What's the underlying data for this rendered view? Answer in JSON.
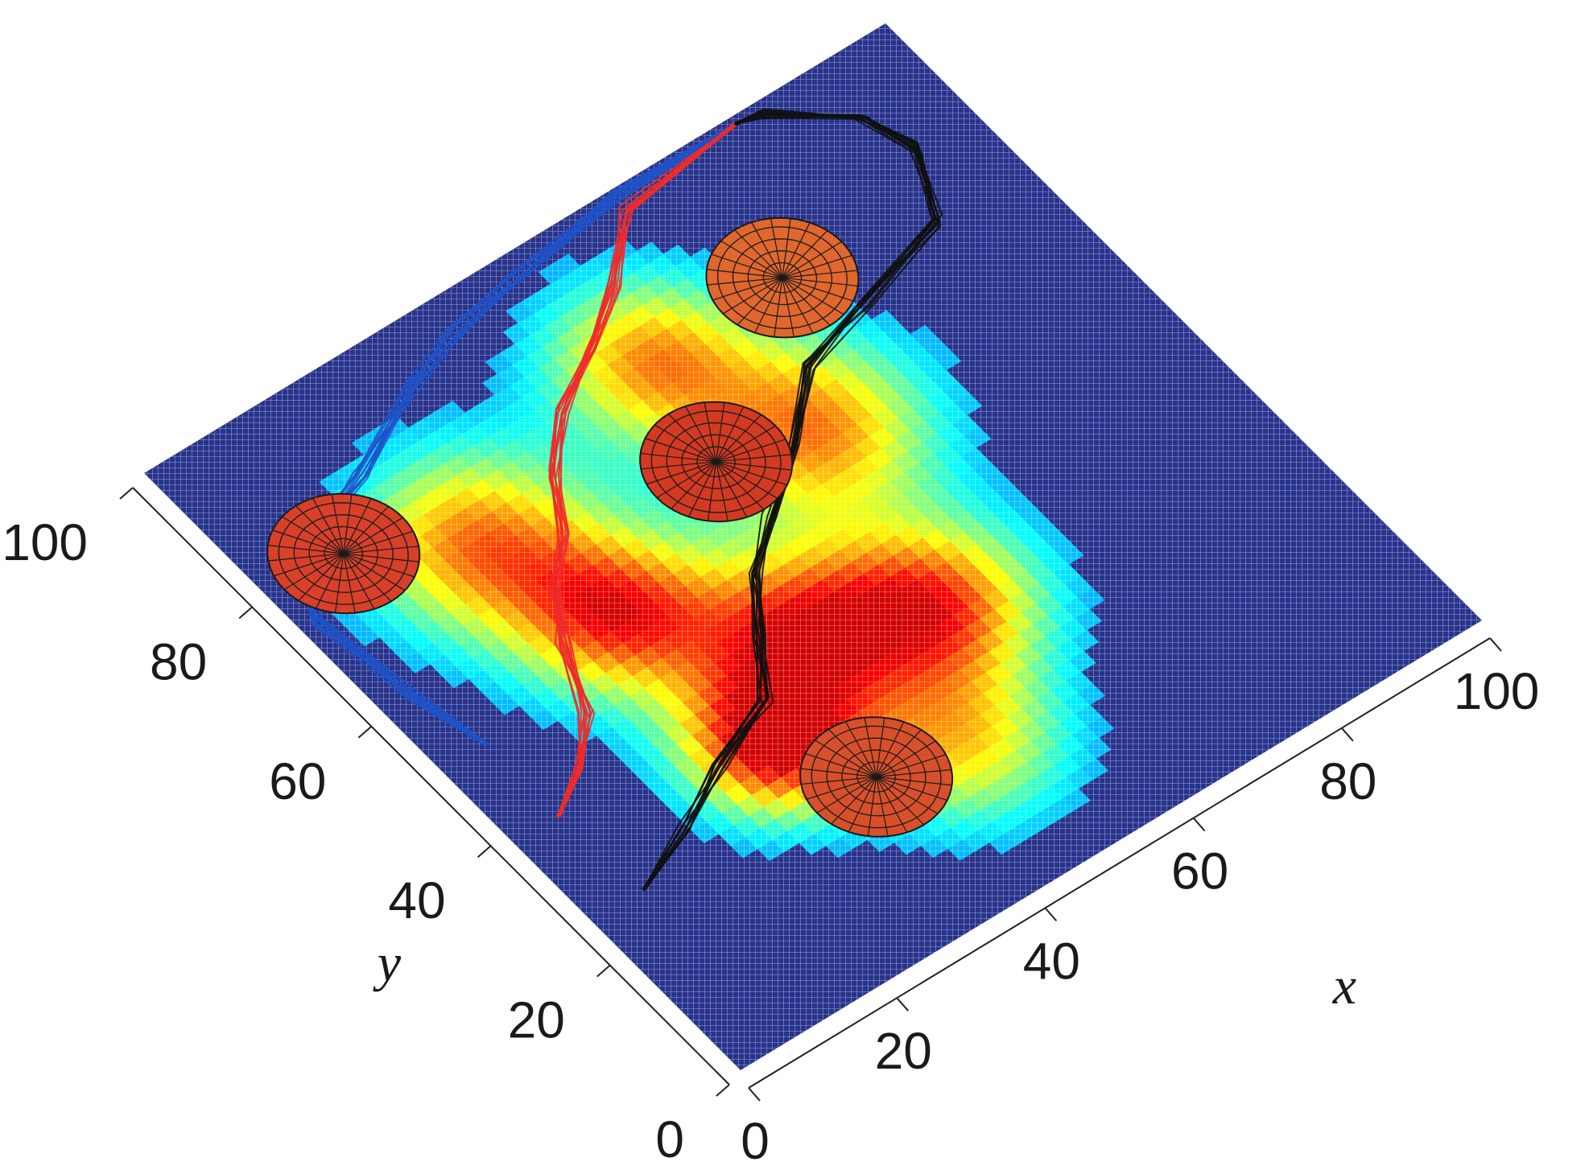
{
  "chart_data": {
    "type": "surface-3d",
    "xlabel": "x",
    "ylabel": "y",
    "xlim": [
      0,
      100
    ],
    "ylim": [
      0,
      100
    ],
    "x_ticks": [
      "0",
      "20",
      "40",
      "60",
      "80",
      "100"
    ],
    "y_ticks": [
      "0",
      "20",
      "40",
      "60",
      "80",
      "100"
    ],
    "grid": true,
    "surface": {
      "colormap": "jet",
      "base_color": "#27338c",
      "peaks": [
        {
          "x": 22,
          "y": 72,
          "height": 0.75,
          "spread": 9
        },
        {
          "x": 28,
          "y": 55,
          "height": 0.85,
          "spread": 8
        },
        {
          "x": 30,
          "y": 32,
          "height": 1.0,
          "spread": 7
        },
        {
          "x": 42,
          "y": 42,
          "height": 0.8,
          "spread": 8
        },
        {
          "x": 60,
          "y": 62,
          "height": 0.75,
          "spread": 9
        },
        {
          "x": 52,
          "y": 80,
          "height": 0.7,
          "spread": 8
        },
        {
          "x": 56,
          "y": 36,
          "height": 0.8,
          "spread": 8
        },
        {
          "x": 46,
          "y": 20,
          "height": 0.6,
          "spread": 8
        }
      ]
    },
    "obstacles": [
      {
        "x": 10,
        "y": 79,
        "radius": 8,
        "color": "#d8402a"
      },
      {
        "x": 49,
        "y": 65,
        "radius": 8,
        "color": "#d33a22"
      },
      {
        "x": 70,
        "y": 80,
        "radius": 8,
        "color": "#e0672e"
      },
      {
        "x": 36,
        "y": 22,
        "radius": 8,
        "color": "#d8502b"
      }
    ],
    "series": [
      {
        "color": "#1f52c8",
        "points": [
          [
            6,
            50
          ],
          [
            4,
            60
          ],
          [
            2,
            74
          ],
          [
            7,
            82
          ],
          [
            18,
            86
          ],
          [
            30,
            92
          ],
          [
            38,
            95
          ],
          [
            48,
            97
          ],
          [
            63,
            99
          ],
          [
            78,
            99
          ]
        ]
      },
      {
        "color": "#ee2b2b",
        "points": [
          [
            6,
            38
          ],
          [
            12,
            42
          ],
          [
            17,
            47
          ],
          [
            21,
            56
          ],
          [
            25,
            62
          ],
          [
            30,
            67
          ],
          [
            34,
            74
          ],
          [
            40,
            80
          ],
          [
            48,
            85
          ],
          [
            55,
            90
          ],
          [
            63,
            97
          ],
          [
            79,
            99
          ]
        ]
      },
      {
        "color": "#111111",
        "points": [
          [
            7,
            25
          ],
          [
            16,
            29
          ],
          [
            24,
            33
          ],
          [
            33,
            37
          ],
          [
            38,
            44
          ],
          [
            43,
            51
          ],
          [
            49,
            56
          ],
          [
            57,
            62
          ],
          [
            65,
            69
          ],
          [
            75,
            72
          ],
          [
            88,
            76
          ],
          [
            92,
            85
          ],
          [
            90,
            92
          ],
          [
            82,
            98
          ],
          [
            79,
            99
          ]
        ]
      }
    ]
  }
}
